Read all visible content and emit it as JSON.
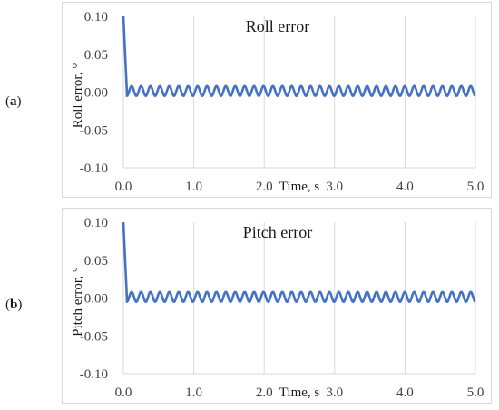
{
  "panels": [
    {
      "label_open": "(",
      "label_letter": "a",
      "label_close": ")"
    },
    {
      "label_open": "(",
      "label_letter": "b",
      "label_close": ")"
    }
  ],
  "chart_data": [
    {
      "type": "line",
      "title": "Roll error",
      "xlabel": "Time, s",
      "ylabel": "Roll error, °",
      "xlim": [
        0,
        5
      ],
      "ylim": [
        -0.1,
        0.1
      ],
      "x_ticks": [
        "0.0",
        "1.0",
        "2.0",
        "3.0",
        "4.0",
        "5.0"
      ],
      "y_ticks": [
        "0.10",
        "0.05",
        "0.00",
        "-0.05",
        "-0.10"
      ],
      "grid": "vertical",
      "series": [
        {
          "color": "#4472c4",
          "initial": [
            [
              0.0,
              0.1
            ],
            [
              0.05,
              0.0
            ]
          ],
          "oscillation": {
            "start": 0.05,
            "end": 5.0,
            "center": 0.0015,
            "amplitude": 0.0065,
            "cycles": 37
          }
        }
      ]
    },
    {
      "type": "line",
      "title": "Pitch error",
      "xlabel": "Time, s",
      "ylabel": "Pitch error, °",
      "xlim": [
        0,
        5
      ],
      "ylim": [
        -0.1,
        0.1
      ],
      "x_ticks": [
        "0.0",
        "1.0",
        "2.0",
        "3.0",
        "4.0",
        "5.0"
      ],
      "y_ticks": [
        "0.10",
        "0.05",
        "0.00",
        "-0.05",
        "-0.10"
      ],
      "grid": "vertical",
      "series": [
        {
          "color": "#4472c4",
          "initial": [
            [
              0.0,
              0.1
            ],
            [
              0.05,
              0.0
            ]
          ],
          "oscillation": {
            "start": 0.05,
            "end": 5.0,
            "center": 0.0015,
            "amplitude": 0.0065,
            "cycles": 37
          }
        }
      ]
    }
  ]
}
